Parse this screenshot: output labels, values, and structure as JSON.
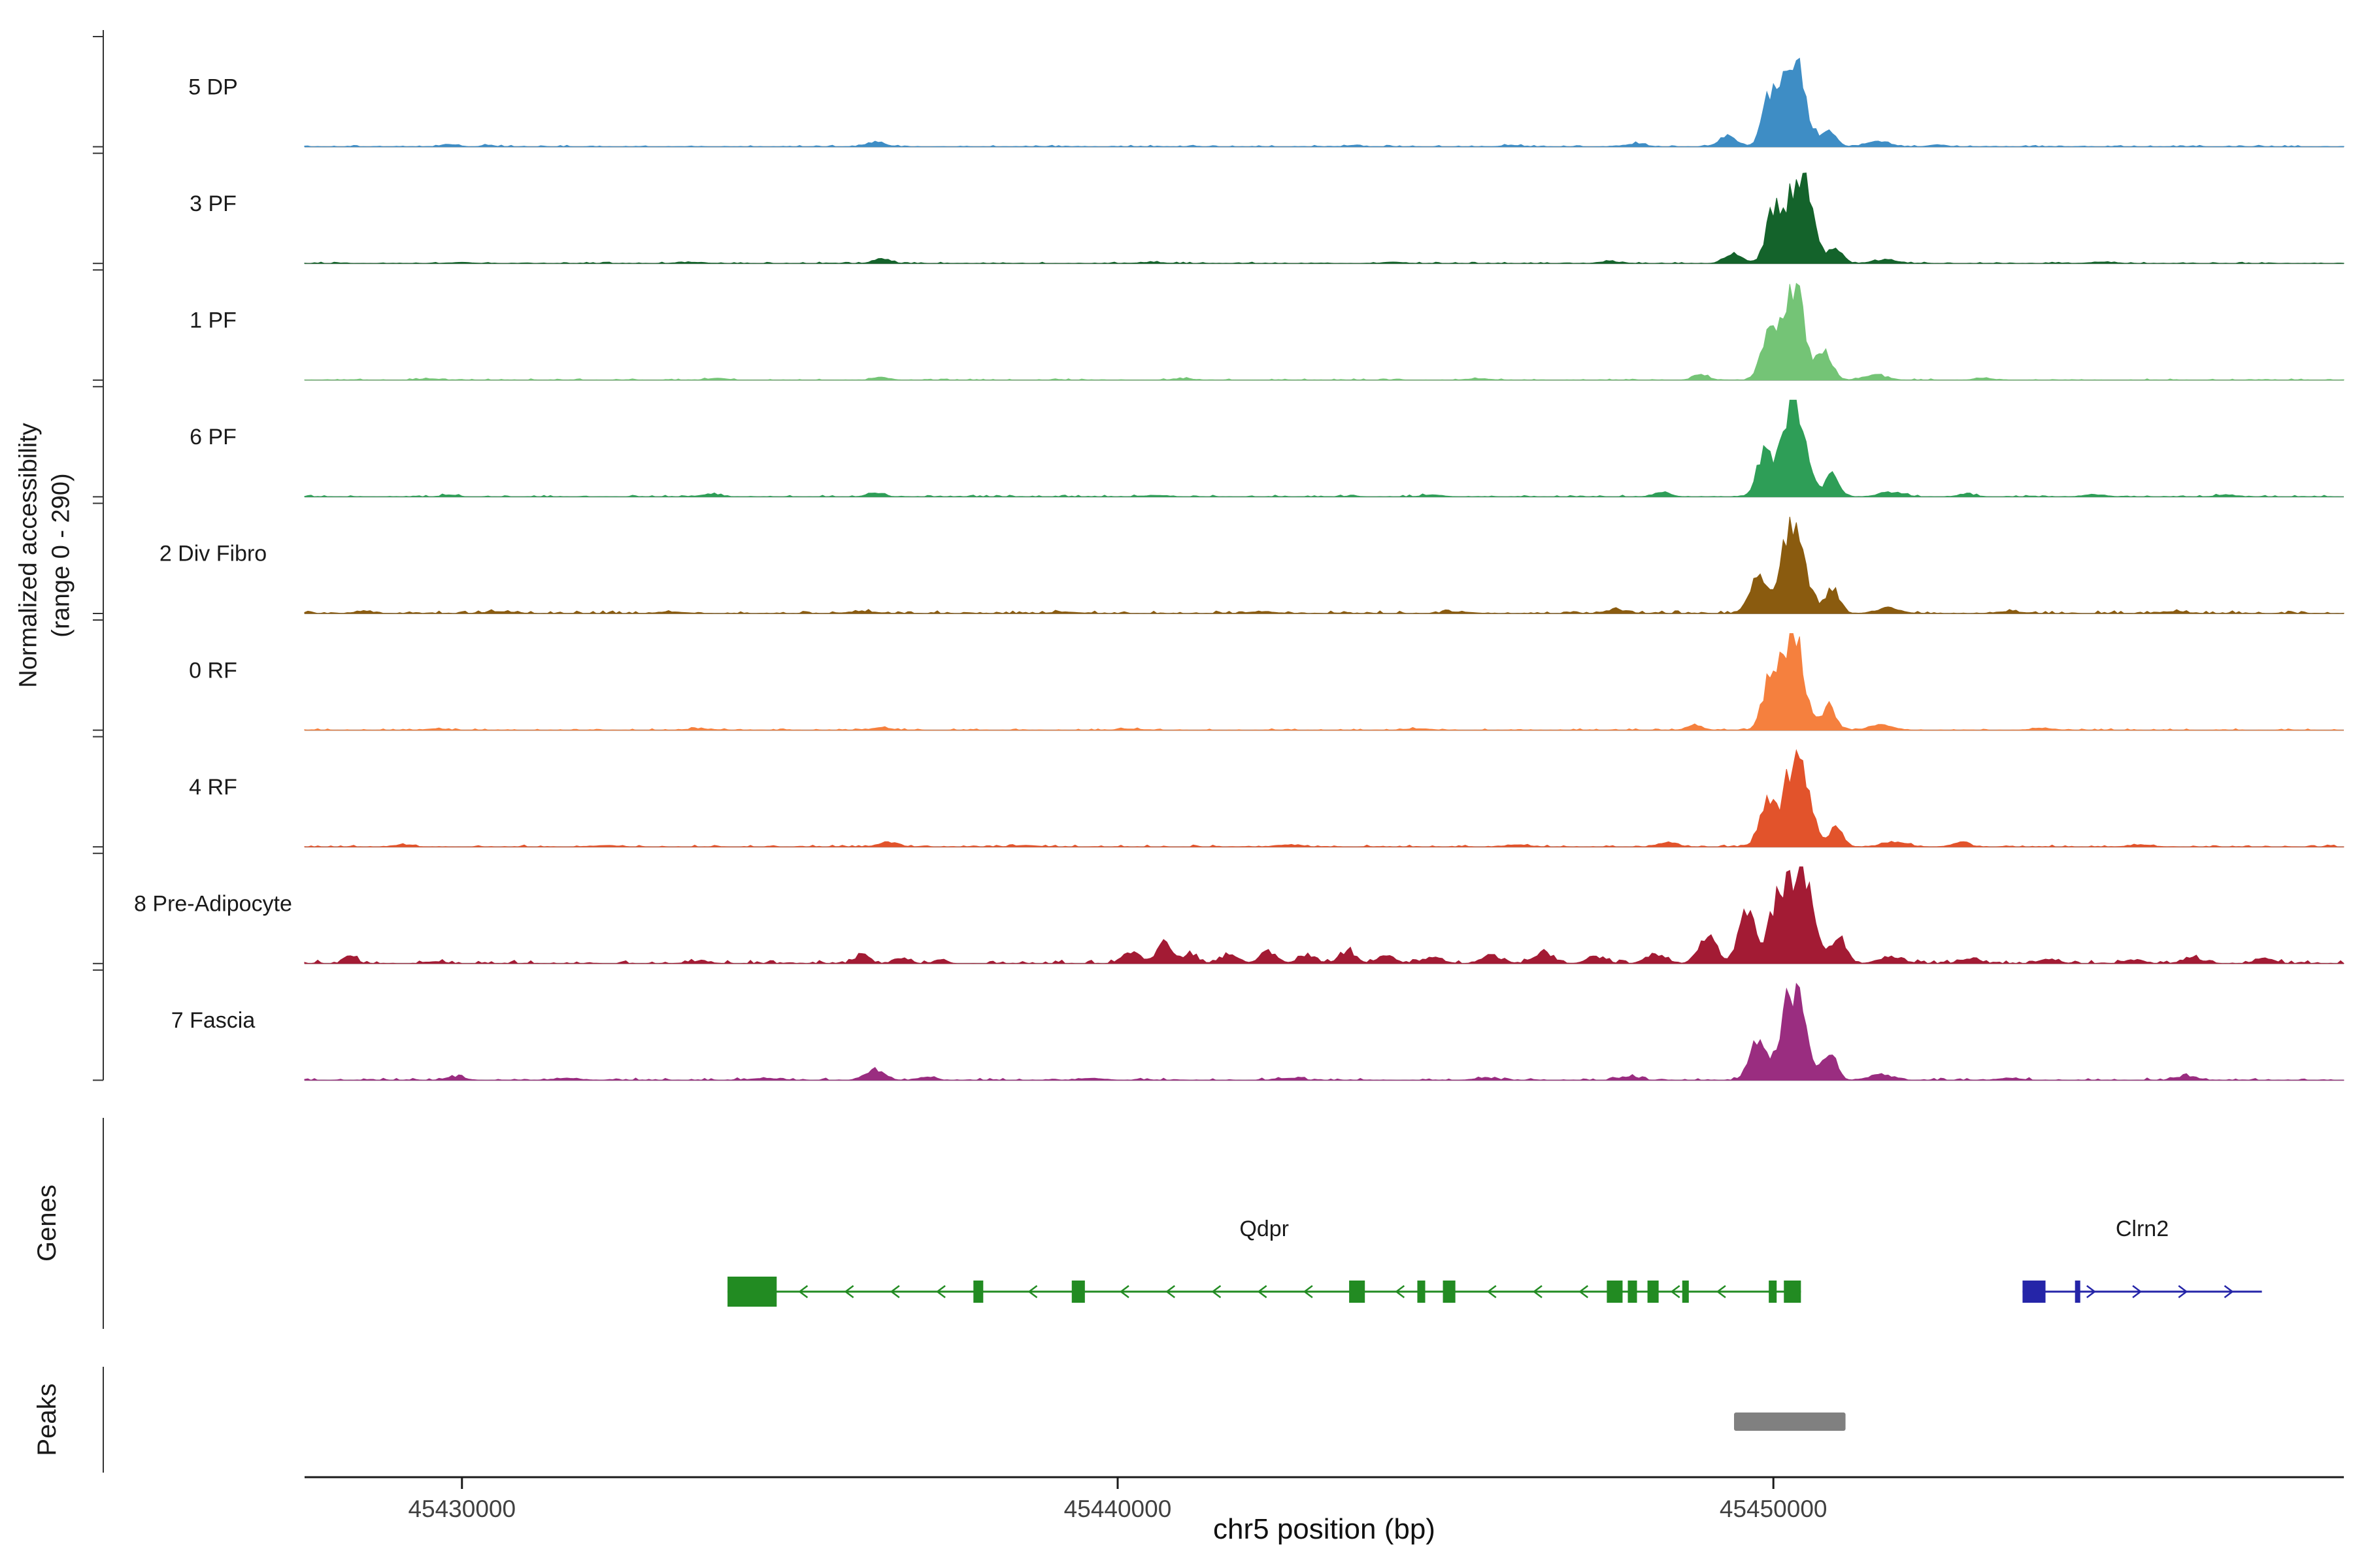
{
  "chart_data": {
    "type": "area",
    "title": "",
    "xlabel": "chr5 position (bp)",
    "ylabel_line1": "Normalized accessibility",
    "ylabel_line2": "(range 0 - 290)",
    "x_range": [
      45427600,
      45458700
    ],
    "x_ticks": [
      45430000,
      45440000,
      45450000
    ],
    "x_tick_labels": [
      "45430000",
      "45440000",
      "45450000"
    ],
    "track_ylim": [
      0,
      290
    ],
    "sections": {
      "genes_label": "Genes",
      "peaks_label": "Peaks"
    },
    "tracks": [
      {
        "label": "5 DP",
        "color": "#3E8DC5",
        "fuzz": 0.008,
        "bumps": [
          [
            45429800,
            150,
            0.03
          ],
          [
            45430400,
            120,
            0.02
          ],
          [
            45436300,
            200,
            0.05
          ],
          [
            45443600,
            150,
            0.015
          ],
          [
            45446000,
            200,
            0.015
          ],
          [
            45447900,
            200,
            0.03
          ],
          [
            45449300,
            180,
            0.12
          ],
          [
            45449950,
            160,
            0.45
          ],
          [
            45450300,
            250,
            0.92
          ],
          [
            45450850,
            150,
            0.18
          ],
          [
            45451600,
            250,
            0.05
          ],
          [
            45452500,
            180,
            0.02
          ]
        ]
      },
      {
        "label": "3 PF",
        "color": "#14632B",
        "fuzz": 0.007,
        "bumps": [
          [
            45430000,
            200,
            0.012
          ],
          [
            45433500,
            250,
            0.012
          ],
          [
            45436400,
            180,
            0.045
          ],
          [
            45440500,
            250,
            0.012
          ],
          [
            45444200,
            200,
            0.015
          ],
          [
            45447500,
            200,
            0.02
          ],
          [
            45449400,
            180,
            0.1
          ],
          [
            45450000,
            160,
            0.5
          ],
          [
            45450400,
            250,
            0.95
          ],
          [
            45450950,
            150,
            0.15
          ],
          [
            45451700,
            250,
            0.04
          ],
          [
            45455000,
            250,
            0.015
          ]
        ]
      },
      {
        "label": "1 PF",
        "color": "#74C476",
        "fuzz": 0.007,
        "bumps": [
          [
            45429500,
            200,
            0.015
          ],
          [
            45433900,
            200,
            0.02
          ],
          [
            45436400,
            180,
            0.03
          ],
          [
            45441000,
            220,
            0.015
          ],
          [
            45445500,
            220,
            0.015
          ],
          [
            45448900,
            160,
            0.06
          ],
          [
            45449900,
            150,
            0.42
          ],
          [
            45450300,
            240,
            0.95
          ],
          [
            45450800,
            150,
            0.28
          ],
          [
            45451550,
            250,
            0.05
          ],
          [
            45453200,
            200,
            0.02
          ]
        ]
      },
      {
        "label": "6 PF",
        "color": "#2E9E57",
        "fuzz": 0.009,
        "bumps": [
          [
            45429800,
            150,
            0.02
          ],
          [
            45433800,
            200,
            0.03
          ],
          [
            45436300,
            180,
            0.035
          ],
          [
            45440600,
            250,
            0.015
          ],
          [
            45444800,
            220,
            0.02
          ],
          [
            45448300,
            180,
            0.045
          ],
          [
            45449850,
            160,
            0.42
          ],
          [
            45450300,
            250,
            0.93
          ],
          [
            45450900,
            150,
            0.22
          ],
          [
            45451800,
            250,
            0.05
          ],
          [
            45452950,
            180,
            0.03
          ],
          [
            45454900,
            220,
            0.025
          ],
          [
            45456900,
            200,
            0.02
          ]
        ]
      },
      {
        "label": "2 Div Fibro",
        "color": "#8A5B0F",
        "fuzz": 0.014,
        "bumps": [
          [
            45428500,
            200,
            0.022
          ],
          [
            45430600,
            300,
            0.018
          ],
          [
            45433200,
            300,
            0.016
          ],
          [
            45436100,
            300,
            0.02
          ],
          [
            45439200,
            300,
            0.015
          ],
          [
            45442200,
            300,
            0.018
          ],
          [
            45445200,
            300,
            0.016
          ],
          [
            45447600,
            250,
            0.03
          ],
          [
            45449750,
            170,
            0.35
          ],
          [
            45450300,
            250,
            0.95
          ],
          [
            45450900,
            150,
            0.25
          ],
          [
            45451750,
            250,
            0.06
          ],
          [
            45453600,
            250,
            0.02
          ],
          [
            45456100,
            250,
            0.02
          ]
        ]
      },
      {
        "label": "0 RF",
        "color": "#F5803E",
        "fuzz": 0.008,
        "bumps": [
          [
            45429600,
            200,
            0.015
          ],
          [
            45433600,
            250,
            0.015
          ],
          [
            45436400,
            200,
            0.025
          ],
          [
            45440200,
            250,
            0.012
          ],
          [
            45444600,
            250,
            0.015
          ],
          [
            45448800,
            160,
            0.05
          ],
          [
            45449950,
            160,
            0.5
          ],
          [
            45450300,
            240,
            0.95
          ],
          [
            45450850,
            150,
            0.25
          ],
          [
            45451650,
            250,
            0.05
          ],
          [
            45454100,
            250,
            0.018
          ]
        ]
      },
      {
        "label": "4 RF",
        "color": "#E2532B",
        "fuzz": 0.01,
        "bumps": [
          [
            45429100,
            200,
            0.02
          ],
          [
            45432200,
            250,
            0.015
          ],
          [
            45436500,
            200,
            0.05
          ],
          [
            45438600,
            250,
            0.015
          ],
          [
            45442600,
            250,
            0.02
          ],
          [
            45446100,
            250,
            0.02
          ],
          [
            45448400,
            180,
            0.05
          ],
          [
            45449900,
            160,
            0.45
          ],
          [
            45450350,
            250,
            0.95
          ],
          [
            45450950,
            150,
            0.2
          ],
          [
            45451850,
            250,
            0.05
          ],
          [
            45452850,
            200,
            0.035
          ],
          [
            45455600,
            250,
            0.02
          ]
        ]
      },
      {
        "label": "8 Pre-Adipocyte",
        "color": "#A31B34",
        "fuzz": 0.018,
        "bumps": [
          [
            45428300,
            120,
            0.1
          ],
          [
            45429600,
            200,
            0.02
          ],
          [
            45433600,
            250,
            0.02
          ],
          [
            45436100,
            150,
            0.09
          ],
          [
            45436700,
            150,
            0.06
          ],
          [
            45437300,
            120,
            0.05
          ],
          [
            45440200,
            180,
            0.12
          ],
          [
            45440700,
            150,
            0.22
          ],
          [
            45441100,
            150,
            0.1
          ],
          [
            45441700,
            180,
            0.09
          ],
          [
            45442300,
            180,
            0.12
          ],
          [
            45442900,
            180,
            0.09
          ],
          [
            45443500,
            180,
            0.12
          ],
          [
            45444100,
            180,
            0.08
          ],
          [
            45444800,
            200,
            0.07
          ],
          [
            45445700,
            200,
            0.09
          ],
          [
            45446500,
            200,
            0.11
          ],
          [
            45447300,
            200,
            0.07
          ],
          [
            45448200,
            200,
            0.1
          ],
          [
            45449000,
            180,
            0.3
          ],
          [
            45449600,
            180,
            0.55
          ],
          [
            45450100,
            200,
            0.75
          ],
          [
            45450450,
            220,
            0.95
          ],
          [
            45451000,
            160,
            0.25
          ],
          [
            45451800,
            250,
            0.07
          ],
          [
            45453000,
            200,
            0.05
          ],
          [
            45454200,
            200,
            0.05
          ],
          [
            45455500,
            200,
            0.04
          ],
          [
            45456400,
            200,
            0.06
          ],
          [
            45457500,
            200,
            0.05
          ]
        ]
      },
      {
        "label": "7 Fascia",
        "color": "#9A2D80",
        "fuzz": 0.012,
        "bumps": [
          [
            45429900,
            200,
            0.035
          ],
          [
            45431600,
            250,
            0.02
          ],
          [
            45434600,
            250,
            0.02
          ],
          [
            45436300,
            200,
            0.11
          ],
          [
            45437100,
            150,
            0.04
          ],
          [
            45439600,
            250,
            0.02
          ],
          [
            45442600,
            250,
            0.02
          ],
          [
            45445600,
            250,
            0.02
          ],
          [
            45447800,
            200,
            0.04
          ],
          [
            45449750,
            170,
            0.4
          ],
          [
            45450300,
            250,
            0.93
          ],
          [
            45450850,
            150,
            0.3
          ],
          [
            45451650,
            250,
            0.06
          ],
          [
            45453600,
            250,
            0.02
          ],
          [
            45456300,
            200,
            0.045
          ]
        ]
      }
    ],
    "genes": [
      {
        "name": "Qdpr",
        "strand": "-",
        "color": "#228B22",
        "start": 45434050,
        "end": 45450420,
        "exons": [
          [
            45434050,
            45434800
          ],
          [
            45437800,
            45437950
          ],
          [
            45439300,
            45439500
          ],
          [
            45443530,
            45443770
          ],
          [
            45444570,
            45444690
          ],
          [
            45444960,
            45445150
          ],
          [
            45447460,
            45447700
          ],
          [
            45447780,
            45447920
          ],
          [
            45448080,
            45448250
          ],
          [
            45448610,
            45448710
          ],
          [
            45449930,
            45450050
          ],
          [
            45450160,
            45450420
          ]
        ]
      },
      {
        "name": "Clrn2",
        "strand": "+",
        "color": "#2525A8",
        "start": 45453800,
        "end": 45457450,
        "exons": [
          [
            45453800,
            45454150
          ],
          [
            45454600,
            45454680
          ]
        ]
      }
    ],
    "peaks": [
      {
        "start": 45449400,
        "end": 45451100,
        "color": "#808080"
      }
    ]
  }
}
